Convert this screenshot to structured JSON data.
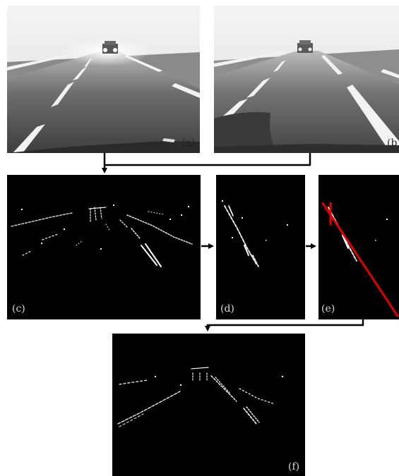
{
  "panels": {
    "a": {
      "label": "(a)"
    },
    "b": {
      "label": "(b"
    },
    "c": {
      "label": "(c)"
    },
    "d": {
      "label": "(d)"
    },
    "e": {
      "label": "(e)"
    },
    "f": {
      "label": "(f)"
    }
  },
  "colors": {
    "fit_line": "#e00000",
    "arrow": "#000000",
    "marking": "#ffffff",
    "dark_background": "#000000"
  }
}
